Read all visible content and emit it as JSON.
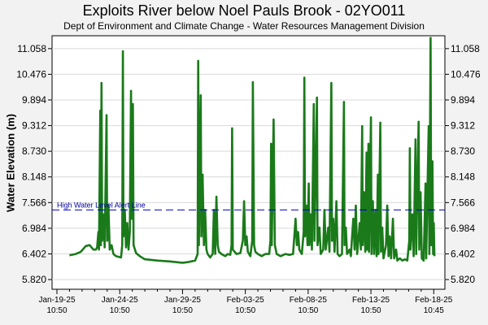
{
  "chart_data": {
    "type": "line",
    "title": "Exploits River below Noel Pauls Brook - 02YO011",
    "subtitle": "Dept of Environment and Climate Change - Water Resources Management Division",
    "xlabel": "",
    "ylabel": "Water Elevation (m)",
    "yticks": [
      5.82,
      6.402,
      6.984,
      7.566,
      8.148,
      8.73,
      9.312,
      9.894,
      10.476,
      11.058
    ],
    "ytick_labels": [
      "5.820",
      "6.402",
      "6.984",
      "7.566",
      "8.148",
      "8.730",
      "9.312",
      "9.894",
      "10.476",
      "11.058"
    ],
    "ylim": [
      5.6,
      11.35
    ],
    "xlim": [
      0,
      30.5
    ],
    "xticks": [
      {
        "day": 0,
        "date": "Jan-19-25",
        "time": "10:50"
      },
      {
        "day": 5,
        "date": "Jan-24-25",
        "time": "10:50"
      },
      {
        "day": 10,
        "date": "Jan-29-25",
        "time": "10:50"
      },
      {
        "day": 15,
        "date": "Feb-03-25",
        "time": "10:50"
      },
      {
        "day": 20,
        "date": "Feb-08-25",
        "time": "10:50"
      },
      {
        "day": 25,
        "date": "Feb-13-25",
        "time": "10:50"
      },
      {
        "day": 30,
        "date": "Feb-18-25",
        "time": "10:45"
      }
    ],
    "alert_line": {
      "label": "High Water Level Alert Line",
      "value": 7.4,
      "color": "#0000cc"
    },
    "series": [
      {
        "color": "#1a7a1a",
        "points": [
          [
            1.0,
            6.37
          ],
          [
            1.5,
            6.4
          ],
          [
            1.9,
            6.45
          ],
          [
            2.3,
            6.58
          ],
          [
            2.6,
            6.6
          ],
          [
            2.9,
            6.5
          ],
          [
            3.1,
            6.5
          ],
          [
            3.2,
            6.55
          ],
          [
            3.3,
            6.9
          ],
          [
            3.35,
            6.5
          ],
          [
            3.45,
            9.65
          ],
          [
            3.5,
            6.6
          ],
          [
            3.55,
            10.28
          ],
          [
            3.6,
            6.7
          ],
          [
            3.7,
            7.3
          ],
          [
            3.8,
            6.55
          ],
          [
            3.95,
            9.55
          ],
          [
            4.0,
            6.7
          ],
          [
            4.1,
            7.5
          ],
          [
            4.2,
            6.5
          ],
          [
            4.35,
            6.6
          ],
          [
            4.5,
            6.4
          ],
          [
            4.7,
            6.35
          ],
          [
            5.1,
            6.32
          ],
          [
            5.2,
            6.6
          ],
          [
            5.25,
            11.0
          ],
          [
            5.3,
            6.8
          ],
          [
            5.4,
            7.4
          ],
          [
            5.5,
            6.55
          ],
          [
            5.6,
            7.1
          ],
          [
            5.7,
            6.5
          ],
          [
            5.8,
            6.9
          ],
          [
            5.9,
            10.1
          ],
          [
            5.95,
            7.2
          ],
          [
            6.05,
            9.8
          ],
          [
            6.1,
            6.6
          ],
          [
            6.3,
            6.42
          ],
          [
            6.6,
            6.35
          ],
          [
            7.0,
            6.28
          ],
          [
            8.0,
            6.25
          ],
          [
            9.0,
            6.23
          ],
          [
            10.0,
            6.2
          ],
          [
            10.5,
            6.22
          ],
          [
            11.0,
            6.25
          ],
          [
            11.2,
            6.4
          ],
          [
            11.25,
            10.78
          ],
          [
            11.3,
            6.6
          ],
          [
            11.45,
            10.0
          ],
          [
            11.5,
            6.8
          ],
          [
            11.6,
            8.2
          ],
          [
            11.7,
            6.6
          ],
          [
            11.8,
            7.4
          ],
          [
            11.9,
            6.5
          ],
          [
            12.0,
            6.4
          ],
          [
            12.2,
            6.32
          ],
          [
            12.4,
            6.4
          ],
          [
            12.5,
            7.4
          ],
          [
            12.6,
            6.4
          ],
          [
            12.7,
            7.7
          ],
          [
            12.8,
            6.6
          ],
          [
            12.9,
            6.45
          ],
          [
            13.1,
            6.4
          ],
          [
            13.4,
            6.35
          ],
          [
            13.6,
            6.4
          ],
          [
            13.8,
            6.38
          ],
          [
            13.9,
            6.6
          ],
          [
            13.95,
            9.25
          ],
          [
            14.0,
            6.5
          ],
          [
            14.3,
            6.4
          ],
          [
            14.6,
            6.42
          ],
          [
            14.8,
            6.7
          ],
          [
            14.9,
            7.6
          ],
          [
            15.0,
            6.6
          ],
          [
            15.1,
            6.8
          ],
          [
            15.2,
            6.45
          ],
          [
            15.4,
            6.35
          ],
          [
            15.55,
            6.7
          ],
          [
            15.6,
            10.3
          ],
          [
            15.7,
            6.6
          ],
          [
            15.8,
            6.45
          ],
          [
            16.0,
            6.4
          ],
          [
            16.3,
            6.35
          ],
          [
            16.6,
            6.4
          ],
          [
            16.9,
            6.4
          ],
          [
            17.0,
            6.7
          ],
          [
            17.05,
            8.9
          ],
          [
            17.1,
            6.6
          ],
          [
            17.25,
            9.45
          ],
          [
            17.35,
            6.6
          ],
          [
            17.5,
            6.4
          ],
          [
            17.8,
            6.35
          ],
          [
            18.2,
            6.4
          ],
          [
            18.5,
            6.38
          ],
          [
            18.8,
            6.4
          ],
          [
            18.9,
            6.8
          ],
          [
            19.0,
            7.2
          ],
          [
            19.1,
            6.6
          ],
          [
            19.2,
            6.9
          ],
          [
            19.3,
            6.5
          ],
          [
            19.5,
            6.4
          ],
          [
            19.65,
            6.9
          ],
          [
            19.7,
            10.4
          ],
          [
            19.75,
            6.8
          ],
          [
            19.85,
            7.5
          ],
          [
            19.95,
            6.6
          ],
          [
            20.05,
            8.0
          ],
          [
            20.1,
            6.6
          ],
          [
            20.2,
            7.3
          ],
          [
            20.3,
            6.5
          ],
          [
            20.45,
            9.8
          ],
          [
            20.5,
            6.7
          ],
          [
            20.7,
            9.95
          ],
          [
            20.75,
            6.6
          ],
          [
            20.9,
            7.0
          ],
          [
            21.0,
            6.4
          ],
          [
            21.2,
            6.5
          ],
          [
            21.3,
            7.4
          ],
          [
            21.4,
            6.5
          ],
          [
            21.6,
            7.0
          ],
          [
            21.7,
            6.45
          ],
          [
            21.85,
            10.28
          ],
          [
            21.9,
            6.7
          ],
          [
            22.0,
            7.2
          ],
          [
            22.1,
            6.45
          ],
          [
            22.25,
            7.6
          ],
          [
            22.35,
            6.4
          ],
          [
            22.5,
            6.35
          ],
          [
            22.7,
            6.4
          ],
          [
            22.85,
            9.85
          ],
          [
            22.9,
            6.6
          ],
          [
            23.0,
            7.0
          ],
          [
            23.1,
            6.4
          ],
          [
            23.3,
            6.5
          ],
          [
            23.4,
            6.35
          ],
          [
            23.5,
            6.8
          ],
          [
            23.6,
            7.2
          ],
          [
            23.7,
            6.5
          ],
          [
            23.8,
            7.5
          ],
          [
            23.9,
            6.4
          ],
          [
            24.0,
            6.7
          ],
          [
            24.1,
            7.1
          ],
          [
            24.2,
            6.5
          ],
          [
            24.3,
            9.3
          ],
          [
            24.35,
            6.6
          ],
          [
            24.45,
            7.8
          ],
          [
            24.55,
            6.45
          ],
          [
            24.65,
            8.7
          ],
          [
            24.7,
            6.5
          ],
          [
            24.8,
            8.9
          ],
          [
            24.85,
            6.45
          ],
          [
            25.0,
            9.5
          ],
          [
            25.05,
            6.4
          ],
          [
            25.15,
            7.6
          ],
          [
            25.25,
            6.4
          ],
          [
            25.35,
            7.4
          ],
          [
            25.45,
            6.35
          ],
          [
            25.55,
            8.2
          ],
          [
            25.6,
            6.4
          ],
          [
            25.75,
            9.38
          ],
          [
            25.8,
            6.45
          ],
          [
            25.9,
            7.0
          ],
          [
            26.0,
            6.3
          ],
          [
            26.2,
            6.6
          ],
          [
            26.3,
            7.5
          ],
          [
            26.4,
            6.35
          ],
          [
            26.5,
            6.8
          ],
          [
            26.6,
            6.3
          ],
          [
            26.75,
            7.2
          ],
          [
            26.85,
            6.3
          ],
          [
            27.0,
            6.5
          ],
          [
            27.1,
            6.25
          ],
          [
            27.3,
            6.3
          ],
          [
            27.5,
            6.25
          ],
          [
            27.7,
            6.28
          ],
          [
            27.9,
            6.25
          ],
          [
            28.05,
            6.7
          ],
          [
            28.1,
            8.8
          ],
          [
            28.15,
            6.5
          ],
          [
            28.3,
            7.3
          ],
          [
            28.4,
            6.35
          ],
          [
            28.55,
            9.0
          ],
          [
            28.6,
            6.4
          ],
          [
            28.8,
            9.4
          ],
          [
            28.85,
            6.5
          ],
          [
            28.95,
            7.8
          ],
          [
            29.05,
            6.3
          ],
          [
            29.2,
            6.25
          ],
          [
            29.35,
            8.0
          ],
          [
            29.4,
            6.3
          ],
          [
            29.6,
            9.3
          ],
          [
            29.65,
            6.4
          ],
          [
            29.75,
            11.3
          ],
          [
            29.8,
            6.6
          ],
          [
            29.9,
            8.5
          ],
          [
            29.95,
            6.4
          ],
          [
            30.0,
            7.1
          ],
          [
            30.05,
            6.35
          ]
        ]
      }
    ]
  }
}
